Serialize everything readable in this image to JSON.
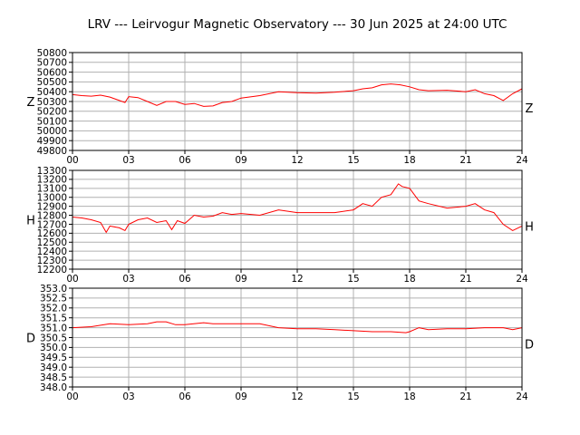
{
  "title": "LRV --- Leirvogur Magnetic Observatory --- 30 Jun 2025 at 24:00 UTC",
  "colors": {
    "series": "#ff0000",
    "grid": "#b0b0b0",
    "axis": "#000000"
  },
  "chart_data": [
    {
      "type": "line",
      "component": "Z",
      "left_label": "Z",
      "right_label": "Z",
      "xlim": [
        0,
        24
      ],
      "xticks": [
        "00",
        "03",
        "06",
        "09",
        "12",
        "15",
        "18",
        "21",
        "24"
      ],
      "ylim": [
        49800,
        50800
      ],
      "yticks": [
        "49800",
        "49900",
        "50000",
        "50100",
        "50200",
        "50300",
        "50400",
        "50500",
        "50600",
        "50700",
        "50800"
      ],
      "grid": true,
      "series": [
        {
          "x": [
            0,
            0.5,
            1,
            1.5,
            2,
            2.5,
            2.8,
            3,
            3.5,
            4,
            4.5,
            5,
            5.5,
            6,
            6.5,
            7,
            7.5,
            8,
            8.5,
            9,
            10,
            11,
            12,
            13,
            14,
            15,
            15.5,
            16,
            16.5,
            17,
            17.5,
            18,
            18.5,
            19,
            20,
            21,
            21.5,
            22,
            22.5,
            23,
            23.5,
            24
          ],
          "y": [
            50370,
            50360,
            50355,
            50365,
            50345,
            50310,
            50290,
            50350,
            50340,
            50300,
            50260,
            50300,
            50300,
            50270,
            50280,
            50250,
            50255,
            50290,
            50300,
            50335,
            50360,
            50400,
            50390,
            50385,
            50395,
            50410,
            50430,
            50440,
            50470,
            50480,
            50470,
            50450,
            50420,
            50410,
            50415,
            50400,
            50420,
            50380,
            50360,
            50310,
            50380,
            50430
          ]
        }
      ]
    },
    {
      "type": "line",
      "component": "H",
      "left_label": "H",
      "right_label": "H",
      "xlim": [
        0,
        24
      ],
      "xticks": [
        "00",
        "03",
        "06",
        "09",
        "12",
        "15",
        "18",
        "21",
        "24"
      ],
      "ylim": [
        12200,
        13300
      ],
      "yticks": [
        "12200",
        "12300",
        "12400",
        "12500",
        "12600",
        "12700",
        "12800",
        "12900",
        "13000",
        "13100",
        "13200",
        "13300"
      ],
      "grid": true,
      "series": [
        {
          "x": [
            0,
            0.5,
            1,
            1.5,
            1.8,
            2,
            2.5,
            2.8,
            3,
            3.5,
            4,
            4.5,
            5,
            5.3,
            5.6,
            6,
            6.5,
            7,
            7.5,
            8,
            8.5,
            9,
            10,
            11,
            12,
            13,
            14,
            15,
            15.5,
            16,
            16.5,
            17,
            17.4,
            17.6,
            18,
            18.5,
            19,
            20,
            21,
            21.5,
            22,
            22.5,
            23,
            23.5,
            24
          ],
          "y": [
            12780,
            12770,
            12750,
            12720,
            12610,
            12680,
            12660,
            12630,
            12700,
            12750,
            12770,
            12720,
            12740,
            12640,
            12740,
            12710,
            12800,
            12780,
            12790,
            12830,
            12810,
            12820,
            12800,
            12860,
            12830,
            12830,
            12830,
            12860,
            12930,
            12900,
            13000,
            13030,
            13150,
            13120,
            13100,
            12960,
            12930,
            12880,
            12900,
            12930,
            12860,
            12830,
            12700,
            12630,
            12680
          ]
        }
      ]
    },
    {
      "type": "line",
      "component": "D",
      "left_label": "D",
      "right_label": "D",
      "xlim": [
        0,
        24
      ],
      "xticks": [
        "00",
        "03",
        "06",
        "09",
        "12",
        "15",
        "18",
        "21",
        "24"
      ],
      "ylim": [
        348.0,
        353.0
      ],
      "yticks": [
        "348.0",
        "348.5",
        "349.0",
        "349.5",
        "350.0",
        "350.5",
        "351.0",
        "351.5",
        "352.0",
        "352.5",
        "353.0"
      ],
      "grid": true,
      "series": [
        {
          "x": [
            0,
            1,
            2,
            3,
            4,
            4.5,
            5,
            5.5,
            6,
            7,
            7.5,
            8,
            9,
            10,
            11,
            12,
            13,
            14,
            15,
            16,
            17,
            17.8,
            18,
            18.5,
            19,
            20,
            21,
            22,
            23,
            23.5,
            24
          ],
          "y": [
            351.0,
            351.05,
            351.2,
            351.15,
            351.2,
            351.3,
            351.3,
            351.15,
            351.15,
            351.25,
            351.2,
            351.2,
            351.2,
            351.2,
            351.0,
            350.95,
            350.95,
            350.9,
            350.85,
            350.8,
            350.8,
            350.75,
            350.8,
            351.0,
            350.9,
            350.95,
            350.95,
            351.0,
            351.0,
            350.9,
            351.0
          ]
        }
      ]
    }
  ]
}
